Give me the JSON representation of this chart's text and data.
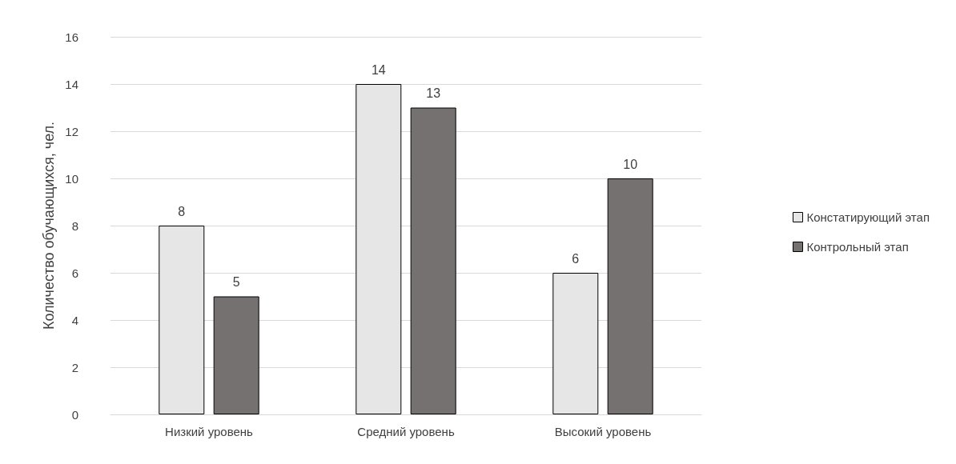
{
  "chart_data": {
    "type": "bar",
    "ylabel": "Количество обучающихся, чел.",
    "categories": [
      "Низкий уровень",
      "Средний уровень",
      "Высокий уровень"
    ],
    "series": [
      {
        "name": "Констатирующий этап",
        "color": "#e7e6e6",
        "values": [
          8,
          14,
          6
        ]
      },
      {
        "name": "Контрольный этап",
        "color": "#767171",
        "values": [
          5,
          13,
          10
        ]
      }
    ],
    "ylim": [
      0,
      16
    ],
    "yticks": [
      0,
      2,
      4,
      6,
      8,
      10,
      12,
      14,
      16
    ],
    "grid": "y",
    "legend": "right",
    "data_labels": true
  }
}
